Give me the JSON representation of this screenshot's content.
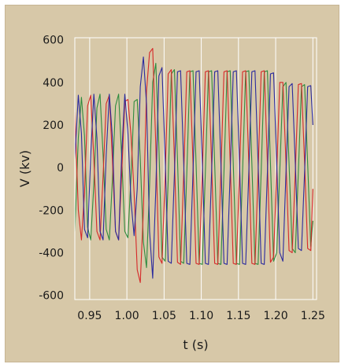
{
  "chart_data": {
    "type": "line",
    "title": "",
    "xlabel": "t (s)",
    "ylabel": "V (kv)",
    "xlim": [
      0.93,
      1.255
    ],
    "ylim": [
      -620,
      610
    ],
    "x_ticks": [
      "0.95",
      "1.00",
      "1.05",
      "1.10",
      "1.15",
      "1.20",
      "1.25"
    ],
    "x_tick_values": [
      0.95,
      1.0,
      1.05,
      1.1,
      1.15,
      1.2,
      1.25
    ],
    "y_ticks": [
      "600",
      "400",
      "200",
      "0",
      "-200",
      "-400",
      "-600"
    ],
    "y_tick_values": [
      600,
      400,
      200,
      0,
      -200,
      -400,
      -600
    ],
    "grid": true,
    "legend": "none",
    "background_color": "#d7c8a8",
    "series": [
      {
        "color": "#2e8b3e",
        "values": [
          [
            0.93,
            -300
          ],
          [
            0.9347,
            140
          ],
          [
            0.9389,
            330
          ],
          [
            0.943,
            150
          ],
          [
            0.9472,
            -280
          ],
          [
            0.9514,
            -340
          ],
          [
            0.9556,
            -80
          ],
          [
            0.9597,
            280
          ],
          [
            0.9639,
            345
          ],
          [
            0.968,
            60
          ],
          [
            0.9722,
            -290
          ],
          [
            0.9764,
            -340
          ],
          [
            0.9805,
            -60
          ],
          [
            0.9847,
            290
          ],
          [
            0.9889,
            345
          ],
          [
            0.993,
            50
          ],
          [
            0.9972,
            -300
          ],
          [
            1.0014,
            -330
          ],
          [
            1.0056,
            -40
          ],
          [
            1.0097,
            310
          ],
          [
            1.0139,
            320
          ],
          [
            1.018,
            40
          ],
          [
            1.0222,
            -350
          ],
          [
            1.0264,
            -470
          ],
          [
            1.0305,
            -80
          ],
          [
            1.0347,
            400
          ],
          [
            1.0389,
            490
          ],
          [
            1.043,
            100
          ],
          [
            1.0472,
            -420
          ],
          [
            1.0514,
            -440
          ],
          [
            1.0555,
            -60
          ],
          [
            1.0597,
            440
          ],
          [
            1.0639,
            460
          ],
          [
            1.068,
            40
          ],
          [
            1.0722,
            -440
          ],
          [
            1.0764,
            -450
          ],
          [
            1.0805,
            -30
          ],
          [
            1.0847,
            450
          ],
          [
            1.0889,
            455
          ],
          [
            1.093,
            20
          ],
          [
            1.0972,
            -450
          ],
          [
            1.1014,
            -455
          ],
          [
            1.1055,
            -20
          ],
          [
            1.1097,
            450
          ],
          [
            1.1139,
            455
          ],
          [
            1.118,
            20
          ],
          [
            1.1222,
            -450
          ],
          [
            1.1264,
            -455
          ],
          [
            1.1305,
            -20
          ],
          [
            1.1347,
            450
          ],
          [
            1.1389,
            455
          ],
          [
            1.143,
            20
          ],
          [
            1.1472,
            -450
          ],
          [
            1.1514,
            -455
          ],
          [
            1.1555,
            -20
          ],
          [
            1.1597,
            450
          ],
          [
            1.1639,
            455
          ],
          [
            1.168,
            20
          ],
          [
            1.1722,
            -450
          ],
          [
            1.1764,
            -455
          ],
          [
            1.1805,
            -20
          ],
          [
            1.1847,
            450
          ],
          [
            1.1889,
            455
          ],
          [
            1.193,
            20
          ],
          [
            1.1972,
            -440
          ],
          [
            1.2014,
            -400
          ],
          [
            1.2055,
            -20
          ],
          [
            1.2097,
            380
          ],
          [
            1.2139,
            400
          ],
          [
            1.218,
            20
          ],
          [
            1.2222,
            -380
          ],
          [
            1.2264,
            -400
          ],
          [
            1.2305,
            -20
          ],
          [
            1.2347,
            380
          ],
          [
            1.2389,
            390
          ],
          [
            1.243,
            20
          ],
          [
            1.2472,
            -370
          ],
          [
            1.25,
            -250
          ]
        ]
      },
      {
        "color": "#d62828",
        "values": [
          [
            0.93,
            260
          ],
          [
            0.9347,
            -200
          ],
          [
            0.9389,
            -340
          ],
          [
            0.943,
            -120
          ],
          [
            0.9472,
            290
          ],
          [
            0.9514,
            340
          ],
          [
            0.9556,
            40
          ],
          [
            0.9597,
            -300
          ],
          [
            0.9639,
            -340
          ],
          [
            0.968,
            -40
          ],
          [
            0.9722,
            300
          ],
          [
            0.9764,
            340
          ],
          [
            0.9805,
            40
          ],
          [
            0.9847,
            -300
          ],
          [
            0.9889,
            -340
          ],
          [
            0.993,
            -30
          ],
          [
            0.9972,
            310
          ],
          [
            1.0014,
            320
          ],
          [
            1.0056,
            150
          ],
          [
            1.0097,
            -120
          ],
          [
            1.0139,
            -480
          ],
          [
            1.018,
            -540
          ],
          [
            1.0222,
            -200
          ],
          [
            1.0264,
            360
          ],
          [
            1.0305,
            540
          ],
          [
            1.0347,
            560
          ],
          [
            1.0389,
            100
          ],
          [
            1.043,
            -420
          ],
          [
            1.0472,
            -450
          ],
          [
            1.0514,
            -40
          ],
          [
            1.0555,
            440
          ],
          [
            1.0597,
            460
          ],
          [
            1.0639,
            40
          ],
          [
            1.068,
            -445
          ],
          [
            1.0722,
            -455
          ],
          [
            1.0764,
            -30
          ],
          [
            1.0805,
            450
          ],
          [
            1.0847,
            455
          ],
          [
            1.0889,
            20
          ],
          [
            1.093,
            -450
          ],
          [
            1.0972,
            -455
          ],
          [
            1.1014,
            -20
          ],
          [
            1.1055,
            450
          ],
          [
            1.1097,
            455
          ],
          [
            1.1139,
            20
          ],
          [
            1.118,
            -450
          ],
          [
            1.1222,
            -455
          ],
          [
            1.1264,
            -20
          ],
          [
            1.1305,
            450
          ],
          [
            1.1347,
            455
          ],
          [
            1.1389,
            20
          ],
          [
            1.143,
            -450
          ],
          [
            1.1472,
            -455
          ],
          [
            1.1514,
            -20
          ],
          [
            1.1555,
            450
          ],
          [
            1.1597,
            455
          ],
          [
            1.1639,
            20
          ],
          [
            1.168,
            -450
          ],
          [
            1.1722,
            -455
          ],
          [
            1.1764,
            -20
          ],
          [
            1.1805,
            450
          ],
          [
            1.1847,
            455
          ],
          [
            1.1889,
            20
          ],
          [
            1.193,
            -445
          ],
          [
            1.1972,
            -420
          ],
          [
            1.2014,
            -20
          ],
          [
            1.2055,
            400
          ],
          [
            1.2097,
            400
          ],
          [
            1.2139,
            20
          ],
          [
            1.218,
            -390
          ],
          [
            1.2222,
            -400
          ],
          [
            1.2264,
            -20
          ],
          [
            1.2305,
            390
          ],
          [
            1.2347,
            395
          ],
          [
            1.2389,
            20
          ],
          [
            1.243,
            -380
          ],
          [
            1.2472,
            -390
          ],
          [
            1.25,
            -100
          ]
        ]
      },
      {
        "color": "#2a2a9e",
        "values": [
          [
            0.93,
            40
          ],
          [
            0.9347,
            340
          ],
          [
            0.9389,
            160
          ],
          [
            0.943,
            -290
          ],
          [
            0.9472,
            -330
          ],
          [
            0.9514,
            60
          ],
          [
            0.9556,
            345
          ],
          [
            0.9597,
            140
          ],
          [
            0.9639,
            -300
          ],
          [
            0.968,
            -340
          ],
          [
            0.9722,
            60
          ],
          [
            0.9764,
            345
          ],
          [
            0.9805,
            140
          ],
          [
            0.9847,
            -300
          ],
          [
            0.9889,
            -340
          ],
          [
            0.993,
            60
          ],
          [
            0.9972,
            345
          ],
          [
            1.0014,
            160
          ],
          [
            1.0056,
            -160
          ],
          [
            1.0097,
            -320
          ],
          [
            1.0139,
            -100
          ],
          [
            1.018,
            380
          ],
          [
            1.0222,
            520
          ],
          [
            1.0264,
            300
          ],
          [
            1.0305,
            -300
          ],
          [
            1.0347,
            -520
          ],
          [
            1.0389,
            -100
          ],
          [
            1.043,
            430
          ],
          [
            1.0472,
            470
          ],
          [
            1.0514,
            40
          ],
          [
            1.0555,
            -440
          ],
          [
            1.0597,
            -450
          ],
          [
            1.0639,
            -30
          ],
          [
            1.068,
            450
          ],
          [
            1.0722,
            455
          ],
          [
            1.0764,
            20
          ],
          [
            1.0805,
            -450
          ],
          [
            1.0847,
            -455
          ],
          [
            1.0889,
            -20
          ],
          [
            1.093,
            450
          ],
          [
            1.0972,
            455
          ],
          [
            1.1014,
            20
          ],
          [
            1.1055,
            -450
          ],
          [
            1.1097,
            -455
          ],
          [
            1.1139,
            -20
          ],
          [
            1.118,
            450
          ],
          [
            1.1222,
            455
          ],
          [
            1.1264,
            20
          ],
          [
            1.1305,
            -450
          ],
          [
            1.1347,
            -455
          ],
          [
            1.1389,
            -20
          ],
          [
            1.143,
            450
          ],
          [
            1.1472,
            455
          ],
          [
            1.1514,
            20
          ],
          [
            1.1555,
            -450
          ],
          [
            1.1597,
            -455
          ],
          [
            1.1639,
            -20
          ],
          [
            1.168,
            450
          ],
          [
            1.1722,
            455
          ],
          [
            1.1764,
            20
          ],
          [
            1.1805,
            -450
          ],
          [
            1.1847,
            -455
          ],
          [
            1.1889,
            -20
          ],
          [
            1.193,
            440
          ],
          [
            1.1972,
            445
          ],
          [
            1.2014,
            20
          ],
          [
            1.2055,
            -400
          ],
          [
            1.2097,
            -440
          ],
          [
            1.2139,
            -20
          ],
          [
            1.218,
            380
          ],
          [
            1.2222,
            395
          ],
          [
            1.2264,
            20
          ],
          [
            1.2305,
            -380
          ],
          [
            1.2347,
            -390
          ],
          [
            1.2389,
            -20
          ],
          [
            1.243,
            380
          ],
          [
            1.2472,
            385
          ],
          [
            1.25,
            200
          ]
        ]
      }
    ]
  }
}
